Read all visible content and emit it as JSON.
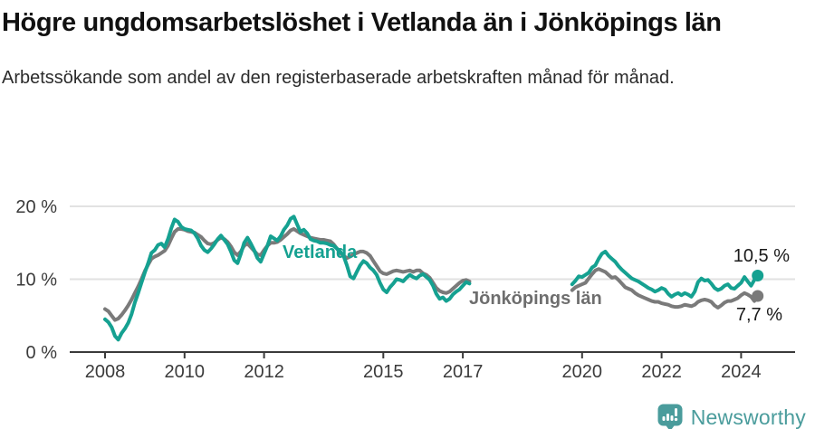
{
  "header": {
    "title": "Högre ungdomsarbetslöshet i Vetlanda än i Jönköpings län",
    "subtitle": "Arbetssökande som andel av den registerbaserade arbetskraften månad för månad."
  },
  "chart_data": {
    "type": "line",
    "title": "Högre ungdomsarbetslöshet i Vetlanda än i Jönköpings län",
    "subtitle": "Arbetssökande som andel av den registerbaserade arbetskraften månad för månad.",
    "unit": "%",
    "grid": true,
    "x_axis": {
      "range": [
        2007.9,
        2024.7
      ],
      "ticks": [
        {
          "value": 2008,
          "label": "2008"
        },
        {
          "value": 2010,
          "label": "2010"
        },
        {
          "value": 2012,
          "label": "2012"
        },
        {
          "value": 2015,
          "label": "2015"
        },
        {
          "value": 2017,
          "label": "2017"
        },
        {
          "value": 2020,
          "label": "2020"
        },
        {
          "value": 2022,
          "label": "2022"
        },
        {
          "value": 2024,
          "label": "2024"
        }
      ]
    },
    "y_axis": {
      "range": [
        0,
        21
      ],
      "ticks": [
        {
          "value": 20,
          "label": "20 %"
        },
        {
          "value": 10,
          "label": "10 %"
        },
        {
          "value": 0,
          "label": "0 %"
        }
      ]
    },
    "series": [
      {
        "id": "jonkopings-lan",
        "name": "Jönköpings län",
        "color": "#7a7a7a",
        "label_color": "#6e6e6e",
        "end_value": 7.7,
        "end_label": "7,7 %",
        "segments": [
          {
            "start": 2008.0,
            "step": 0.0833333,
            "values": [
              5.9,
              5.6,
              5.0,
              4.4,
              4.6,
              5.1,
              5.7,
              6.4,
              7.2,
              8.1,
              9.0,
              10.0,
              11.1,
              12.0,
              12.8,
              13.1,
              13.3,
              13.6,
              13.9,
              14.6,
              15.6,
              16.5,
              16.9,
              16.9,
              16.8,
              16.6,
              16.5,
              16.4,
              16.1,
              15.8,
              15.3,
              14.9,
              14.8,
              15.0,
              15.4,
              15.7,
              15.5,
              15.1,
              14.5,
              13.7,
              13.3,
              13.8,
              14.6,
              14.9,
              14.4,
              13.9,
              13.4,
              13.3,
              14.0,
              14.6,
              15.0,
              15.0,
              15.1,
              15.4,
              15.8,
              16.2,
              16.7,
              16.9,
              16.6,
              16.3,
              16.1,
              15.9,
              15.7,
              15.6,
              15.5,
              15.4,
              15.4,
              15.3,
              15.2,
              14.8,
              14.2,
              13.6,
              13.2,
              12.9,
              13.1,
              13.4,
              13.6,
              13.8,
              13.8,
              13.6,
              13.2,
              12.5,
              11.8,
              11.1,
              10.8,
              10.7,
              10.9,
              11.1,
              11.2,
              11.1,
              11.0,
              11.1,
              11.2,
              11.0,
              11.2,
              11.2,
              10.8,
              10.6,
              10.2,
              9.5,
              8.8,
              8.4,
              8.2,
              8.1,
              8.3,
              8.7,
              9.1,
              9.5,
              9.8,
              9.9,
              9.7
            ]
          },
          {
            "start": 2019.75,
            "step": 0.0833333,
            "values": [
              8.5,
              8.9,
              9.1,
              9.3,
              9.5,
              10.1,
              10.7,
              11.2,
              11.4,
              11.2,
              11.0,
              10.6,
              10.2,
              10.3,
              9.9,
              9.4,
              8.9,
              8.7,
              8.5,
              8.1,
              7.8,
              7.6,
              7.4,
              7.2,
              7.0,
              6.9,
              6.9,
              6.7,
              6.6,
              6.5,
              6.3,
              6.2,
              6.2,
              6.3,
              6.5,
              6.4,
              6.3,
              6.5,
              6.9,
              7.1,
              7.2,
              7.1,
              6.9,
              6.4,
              6.1,
              6.4,
              6.8,
              7.0,
              7.0,
              7.2,
              7.4,
              7.8,
              8.1,
              7.9,
              7.6,
              7.0,
              7.7
            ]
          }
        ]
      },
      {
        "id": "vetlanda",
        "name": "Vetlanda",
        "color": "#15a191",
        "label_color": "#15a191",
        "end_value": 10.5,
        "end_label": "10,5 %",
        "segments": [
          {
            "start": 2008.0,
            "step": 0.0833333,
            "values": [
              4.5,
              4.1,
              3.4,
              2.2,
              1.7,
              2.6,
              3.2,
              4.0,
              5.2,
              6.8,
              8.1,
              9.5,
              10.9,
              12.2,
              13.6,
              14.0,
              14.7,
              14.9,
              14.4,
              15.5,
              17.0,
              18.2,
              17.9,
              17.2,
              16.9,
              16.8,
              16.7,
              16.3,
              15.6,
              14.6,
              14.0,
              13.7,
              14.2,
              14.8,
              15.5,
              16.0,
              15.4,
              14.8,
              13.8,
              12.6,
              12.2,
              13.5,
              15.0,
              15.7,
              14.9,
              14.0,
              12.9,
              12.4,
              13.5,
              14.6,
              15.9,
              15.6,
              15.3,
              15.9,
              16.8,
              17.4,
              18.3,
              18.6,
              17.5,
              16.5,
              16.8,
              16.3,
              15.5,
              15.3,
              15.2,
              15.0,
              15.0,
              14.9,
              14.7,
              14.6,
              14.2,
              13.8,
              13.2,
              11.9,
              10.4,
              10.1,
              11.0,
              11.9,
              12.5,
              12.2,
              11.6,
              11.2,
              10.6,
              9.5,
              8.6,
              8.2,
              8.9,
              9.4,
              10.0,
              9.9,
              9.7,
              10.2,
              10.6,
              10.3,
              10.1,
              10.5,
              10.7,
              10.3,
              9.9,
              9.1,
              8.0,
              7.3,
              7.5,
              7.0,
              7.3,
              7.9,
              8.3,
              8.6,
              9.1,
              9.6,
              9.4
            ]
          },
          {
            "start": 2019.75,
            "step": 0.0833333,
            "values": [
              9.3,
              9.8,
              10.4,
              10.3,
              10.6,
              10.9,
              11.6,
              11.9,
              12.8,
              13.5,
              13.8,
              13.2,
              12.8,
              12.4,
              11.8,
              11.3,
              10.9,
              10.5,
              10.1,
              9.9,
              9.7,
              9.4,
              9.1,
              8.8,
              8.6,
              8.3,
              8.5,
              8.8,
              8.6,
              8.0,
              7.6,
              7.9,
              8.1,
              7.8,
              8.1,
              7.9,
              7.6,
              8.3,
              9.6,
              10.1,
              9.8,
              9.9,
              9.4,
              8.8,
              8.5,
              8.7,
              9.1,
              9.3,
              8.8,
              8.7,
              9.1,
              9.5,
              10.3,
              9.7,
              9.1,
              9.9,
              10.5
            ]
          }
        ]
      }
    ]
  },
  "colors": {
    "vetlanda_line": "#15a191",
    "jonkoping_line": "#7a7a7a",
    "gridline": "#e2e2e2",
    "axis": "#3a3a3a",
    "brand_teal": "#4a9c9c"
  },
  "logo": {
    "text": "Newsworthy"
  }
}
